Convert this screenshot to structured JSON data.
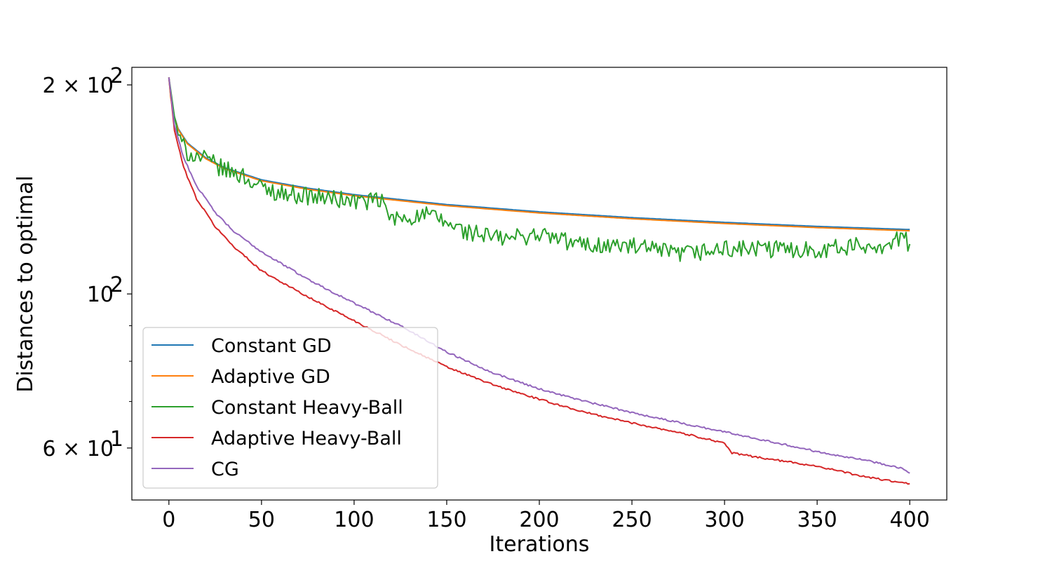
{
  "chart_data": {
    "type": "line",
    "title": "",
    "xlabel": "Iterations",
    "ylabel": "Distances to optimal",
    "yscale": "log",
    "xlim": [
      -20,
      420
    ],
    "ylim": [
      50.5,
      212
    ],
    "grid": false,
    "legend_placement": "lower-left",
    "x_ticks": [
      0,
      50,
      100,
      150,
      200,
      250,
      300,
      350,
      400
    ],
    "y_major_ticks": [
      {
        "value": 60,
        "base": "6 × 10",
        "exp": "1"
      },
      {
        "value": 100,
        "base": "10",
        "exp": "2"
      },
      {
        "value": 200,
        "base": "2 × 10",
        "exp": "2"
      }
    ],
    "y_minor_ticks": [
      70,
      80,
      90,
      300
    ],
    "series": [
      {
        "name": "Constant GD",
        "color": "#1f77b4",
        "noise": 0,
        "anchors": [
          [
            0,
            205
          ],
          [
            1,
            192
          ],
          [
            3,
            180
          ],
          [
            5,
            173
          ],
          [
            10,
            165
          ],
          [
            20,
            157
          ],
          [
            30,
            152
          ],
          [
            40,
            149
          ],
          [
            50,
            146
          ],
          [
            75,
            142
          ],
          [
            100,
            139
          ],
          [
            150,
            134.5
          ],
          [
            200,
            131.3
          ],
          [
            250,
            128.8
          ],
          [
            300,
            126.8
          ],
          [
            350,
            125.1
          ],
          [
            400,
            123.8
          ]
        ]
      },
      {
        "name": "Adaptive GD",
        "color": "#ff7f0e",
        "noise": 0,
        "anchors": [
          [
            0,
            205
          ],
          [
            1,
            191.5
          ],
          [
            3,
            179.5
          ],
          [
            5,
            172.5
          ],
          [
            10,
            164.5
          ],
          [
            20,
            156.5
          ],
          [
            30,
            151.5
          ],
          [
            40,
            148.5
          ],
          [
            50,
            145.5
          ],
          [
            75,
            141.5
          ],
          [
            100,
            138.5
          ],
          [
            150,
            134
          ],
          [
            200,
            130.8
          ],
          [
            250,
            128.3
          ],
          [
            300,
            126.3
          ],
          [
            350,
            124.6
          ],
          [
            400,
            123.3
          ]
        ]
      },
      {
        "name": "Constant Heavy-Ball",
        "color": "#2ca02c",
        "noise": 0.03,
        "anchors": [
          [
            0,
            205
          ],
          [
            3,
            180
          ],
          [
            6,
            166
          ],
          [
            10,
            160
          ],
          [
            20,
            156
          ],
          [
            30,
            151
          ],
          [
            40,
            148
          ],
          [
            50,
            142
          ],
          [
            60,
            140
          ],
          [
            80,
            138
          ],
          [
            100,
            136
          ],
          [
            115,
            136
          ],
          [
            120,
            128
          ],
          [
            140,
            130
          ],
          [
            160,
            123
          ],
          [
            180,
            120
          ],
          [
            200,
            122
          ],
          [
            220,
            118
          ],
          [
            250,
            117
          ],
          [
            275,
            114
          ],
          [
            300,
            116
          ],
          [
            350,
            116
          ],
          [
            390,
            118
          ],
          [
            395,
            121
          ],
          [
            400,
            118
          ]
        ]
      },
      {
        "name": "Adaptive Heavy-Ball",
        "color": "#d62728",
        "noise": 0.003,
        "anchors": [
          [
            0,
            205
          ],
          [
            3,
            172
          ],
          [
            8,
            152
          ],
          [
            15,
            137
          ],
          [
            25,
            125
          ],
          [
            35,
            117
          ],
          [
            50,
            108
          ],
          [
            75,
            99
          ],
          [
            100,
            91.5
          ],
          [
            125,
            84.5
          ],
          [
            150,
            78.5
          ],
          [
            175,
            74
          ],
          [
            200,
            70.5
          ],
          [
            225,
            67.5
          ],
          [
            250,
            65.2
          ],
          [
            275,
            63.2
          ],
          [
            300,
            61
          ],
          [
            304,
            59
          ],
          [
            325,
            57.8
          ],
          [
            350,
            56.5
          ],
          [
            375,
            54.6
          ],
          [
            395,
            53.5
          ],
          [
            400,
            53.3
          ]
        ]
      },
      {
        "name": "CG",
        "color": "#9467bd",
        "noise": 0.003,
        "anchors": [
          [
            0,
            205
          ],
          [
            3,
            175
          ],
          [
            8,
            157
          ],
          [
            15,
            143
          ],
          [
            25,
            131
          ],
          [
            35,
            123
          ],
          [
            50,
            115
          ],
          [
            75,
            105
          ],
          [
            100,
            97
          ],
          [
            125,
            90
          ],
          [
            150,
            82.5
          ],
          [
            175,
            77
          ],
          [
            200,
            73
          ],
          [
            225,
            70
          ],
          [
            250,
            67.5
          ],
          [
            275,
            65.3
          ],
          [
            300,
            63.3
          ],
          [
            325,
            61.3
          ],
          [
            350,
            59.3
          ],
          [
            375,
            57.7
          ],
          [
            395,
            56.2
          ],
          [
            400,
            55.2
          ]
        ]
      }
    ]
  }
}
